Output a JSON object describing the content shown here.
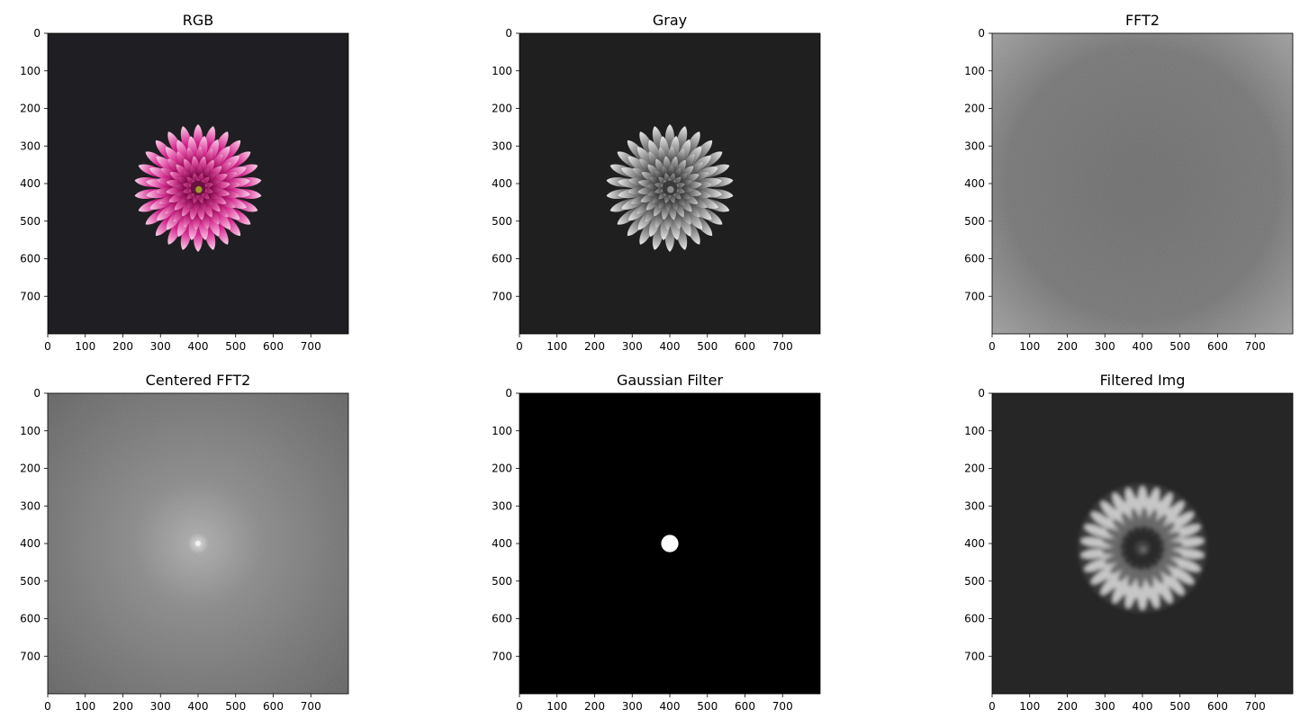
{
  "figure": {
    "layout": {
      "rows": 2,
      "cols": 3
    }
  },
  "chart_data": [
    {
      "type": "image",
      "title": "RGB",
      "content": "color photograph of a magenta and white dahlia on a dark background",
      "xlim": [
        0,
        800
      ],
      "ylim": [
        800,
        0
      ],
      "xticks": [
        0,
        100,
        200,
        300,
        400,
        500,
        600,
        700
      ],
      "yticks": [
        0,
        100,
        200,
        300,
        400,
        500,
        600,
        700
      ]
    },
    {
      "type": "image",
      "title": "Gray",
      "content": "grayscale version of the dahlia",
      "xlim": [
        0,
        800
      ],
      "ylim": [
        800,
        0
      ],
      "xticks": [
        0,
        100,
        200,
        300,
        400,
        500,
        600,
        700
      ],
      "yticks": [
        0,
        100,
        200,
        300,
        400,
        500,
        600,
        700
      ]
    },
    {
      "type": "image",
      "title": "FFT2",
      "content": "log magnitude spectrum, bright in the corners",
      "xlim": [
        0,
        800
      ],
      "ylim": [
        800,
        0
      ],
      "xticks": [
        0,
        100,
        200,
        300,
        400,
        500,
        600,
        700
      ],
      "yticks": [
        0,
        100,
        200,
        300,
        400,
        500,
        600,
        700
      ]
    },
    {
      "type": "image",
      "title": "Centered FFT2",
      "content": "shifted log magnitude spectrum, bright point at center",
      "xlim": [
        0,
        800
      ],
      "ylim": [
        800,
        0
      ],
      "xticks": [
        0,
        100,
        200,
        300,
        400,
        500,
        600,
        700
      ],
      "yticks": [
        0,
        100,
        200,
        300,
        400,
        500,
        600,
        700
      ]
    },
    {
      "type": "image",
      "title": "Gaussian Filter",
      "content": "black image with a white disk centered at (400, 400)",
      "center": [
        400,
        400
      ],
      "radius": 23,
      "xlim": [
        0,
        800
      ],
      "ylim": [
        800,
        0
      ],
      "xticks": [
        0,
        100,
        200,
        300,
        400,
        500,
        600,
        700
      ],
      "yticks": [
        0,
        100,
        200,
        300,
        400,
        500,
        600,
        700
      ]
    },
    {
      "type": "image",
      "title": "Filtered Img",
      "content": "low-pass filtered (blurred) grayscale dahlia",
      "xlim": [
        0,
        800
      ],
      "ylim": [
        800,
        0
      ],
      "xticks": [
        0,
        100,
        200,
        300,
        400,
        500,
        600,
        700
      ],
      "yticks": [
        0,
        100,
        200,
        300,
        400,
        500,
        600,
        700
      ]
    }
  ]
}
